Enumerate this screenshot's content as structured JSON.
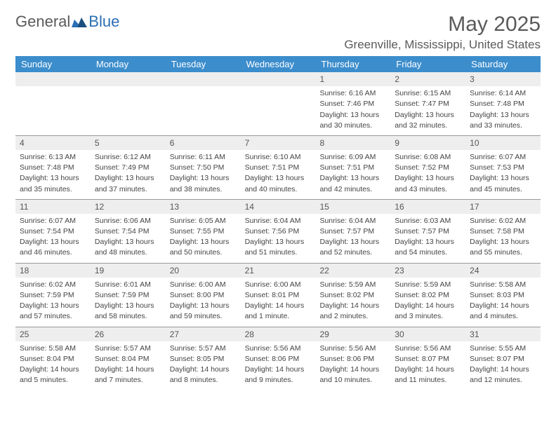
{
  "logo": {
    "part1": "General",
    "part2": "Blue"
  },
  "title": "May 2025",
  "location": "Greenville, Mississippi, United States",
  "colors": {
    "header_bg": "#3c8dcc",
    "daynum_bg": "#eeeeee",
    "text": "#444444",
    "title_text": "#5a5a5a",
    "rule": "#999999"
  },
  "dayNames": [
    "Sunday",
    "Monday",
    "Tuesday",
    "Wednesday",
    "Thursday",
    "Friday",
    "Saturday"
  ],
  "weeks": [
    [
      null,
      null,
      null,
      null,
      {
        "d": "1",
        "sr": "Sunrise: 6:16 AM",
        "ss": "Sunset: 7:46 PM",
        "dl1": "Daylight: 13 hours",
        "dl2": "and 30 minutes."
      },
      {
        "d": "2",
        "sr": "Sunrise: 6:15 AM",
        "ss": "Sunset: 7:47 PM",
        "dl1": "Daylight: 13 hours",
        "dl2": "and 32 minutes."
      },
      {
        "d": "3",
        "sr": "Sunrise: 6:14 AM",
        "ss": "Sunset: 7:48 PM",
        "dl1": "Daylight: 13 hours",
        "dl2": "and 33 minutes."
      }
    ],
    [
      {
        "d": "4",
        "sr": "Sunrise: 6:13 AM",
        "ss": "Sunset: 7:48 PM",
        "dl1": "Daylight: 13 hours",
        "dl2": "and 35 minutes."
      },
      {
        "d": "5",
        "sr": "Sunrise: 6:12 AM",
        "ss": "Sunset: 7:49 PM",
        "dl1": "Daylight: 13 hours",
        "dl2": "and 37 minutes."
      },
      {
        "d": "6",
        "sr": "Sunrise: 6:11 AM",
        "ss": "Sunset: 7:50 PM",
        "dl1": "Daylight: 13 hours",
        "dl2": "and 38 minutes."
      },
      {
        "d": "7",
        "sr": "Sunrise: 6:10 AM",
        "ss": "Sunset: 7:51 PM",
        "dl1": "Daylight: 13 hours",
        "dl2": "and 40 minutes."
      },
      {
        "d": "8",
        "sr": "Sunrise: 6:09 AM",
        "ss": "Sunset: 7:51 PM",
        "dl1": "Daylight: 13 hours",
        "dl2": "and 42 minutes."
      },
      {
        "d": "9",
        "sr": "Sunrise: 6:08 AM",
        "ss": "Sunset: 7:52 PM",
        "dl1": "Daylight: 13 hours",
        "dl2": "and 43 minutes."
      },
      {
        "d": "10",
        "sr": "Sunrise: 6:07 AM",
        "ss": "Sunset: 7:53 PM",
        "dl1": "Daylight: 13 hours",
        "dl2": "and 45 minutes."
      }
    ],
    [
      {
        "d": "11",
        "sr": "Sunrise: 6:07 AM",
        "ss": "Sunset: 7:54 PM",
        "dl1": "Daylight: 13 hours",
        "dl2": "and 46 minutes."
      },
      {
        "d": "12",
        "sr": "Sunrise: 6:06 AM",
        "ss": "Sunset: 7:54 PM",
        "dl1": "Daylight: 13 hours",
        "dl2": "and 48 minutes."
      },
      {
        "d": "13",
        "sr": "Sunrise: 6:05 AM",
        "ss": "Sunset: 7:55 PM",
        "dl1": "Daylight: 13 hours",
        "dl2": "and 50 minutes."
      },
      {
        "d": "14",
        "sr": "Sunrise: 6:04 AM",
        "ss": "Sunset: 7:56 PM",
        "dl1": "Daylight: 13 hours",
        "dl2": "and 51 minutes."
      },
      {
        "d": "15",
        "sr": "Sunrise: 6:04 AM",
        "ss": "Sunset: 7:57 PM",
        "dl1": "Daylight: 13 hours",
        "dl2": "and 52 minutes."
      },
      {
        "d": "16",
        "sr": "Sunrise: 6:03 AM",
        "ss": "Sunset: 7:57 PM",
        "dl1": "Daylight: 13 hours",
        "dl2": "and 54 minutes."
      },
      {
        "d": "17",
        "sr": "Sunrise: 6:02 AM",
        "ss": "Sunset: 7:58 PM",
        "dl1": "Daylight: 13 hours",
        "dl2": "and 55 minutes."
      }
    ],
    [
      {
        "d": "18",
        "sr": "Sunrise: 6:02 AM",
        "ss": "Sunset: 7:59 PM",
        "dl1": "Daylight: 13 hours",
        "dl2": "and 57 minutes."
      },
      {
        "d": "19",
        "sr": "Sunrise: 6:01 AM",
        "ss": "Sunset: 7:59 PM",
        "dl1": "Daylight: 13 hours",
        "dl2": "and 58 minutes."
      },
      {
        "d": "20",
        "sr": "Sunrise: 6:00 AM",
        "ss": "Sunset: 8:00 PM",
        "dl1": "Daylight: 13 hours",
        "dl2": "and 59 minutes."
      },
      {
        "d": "21",
        "sr": "Sunrise: 6:00 AM",
        "ss": "Sunset: 8:01 PM",
        "dl1": "Daylight: 14 hours",
        "dl2": "and 1 minute."
      },
      {
        "d": "22",
        "sr": "Sunrise: 5:59 AM",
        "ss": "Sunset: 8:02 PM",
        "dl1": "Daylight: 14 hours",
        "dl2": "and 2 minutes."
      },
      {
        "d": "23",
        "sr": "Sunrise: 5:59 AM",
        "ss": "Sunset: 8:02 PM",
        "dl1": "Daylight: 14 hours",
        "dl2": "and 3 minutes."
      },
      {
        "d": "24",
        "sr": "Sunrise: 5:58 AM",
        "ss": "Sunset: 8:03 PM",
        "dl1": "Daylight: 14 hours",
        "dl2": "and 4 minutes."
      }
    ],
    [
      {
        "d": "25",
        "sr": "Sunrise: 5:58 AM",
        "ss": "Sunset: 8:04 PM",
        "dl1": "Daylight: 14 hours",
        "dl2": "and 5 minutes."
      },
      {
        "d": "26",
        "sr": "Sunrise: 5:57 AM",
        "ss": "Sunset: 8:04 PM",
        "dl1": "Daylight: 14 hours",
        "dl2": "and 7 minutes."
      },
      {
        "d": "27",
        "sr": "Sunrise: 5:57 AM",
        "ss": "Sunset: 8:05 PM",
        "dl1": "Daylight: 14 hours",
        "dl2": "and 8 minutes."
      },
      {
        "d": "28",
        "sr": "Sunrise: 5:56 AM",
        "ss": "Sunset: 8:06 PM",
        "dl1": "Daylight: 14 hours",
        "dl2": "and 9 minutes."
      },
      {
        "d": "29",
        "sr": "Sunrise: 5:56 AM",
        "ss": "Sunset: 8:06 PM",
        "dl1": "Daylight: 14 hours",
        "dl2": "and 10 minutes."
      },
      {
        "d": "30",
        "sr": "Sunrise: 5:56 AM",
        "ss": "Sunset: 8:07 PM",
        "dl1": "Daylight: 14 hours",
        "dl2": "and 11 minutes."
      },
      {
        "d": "31",
        "sr": "Sunrise: 5:55 AM",
        "ss": "Sunset: 8:07 PM",
        "dl1": "Daylight: 14 hours",
        "dl2": "and 12 minutes."
      }
    ]
  ]
}
